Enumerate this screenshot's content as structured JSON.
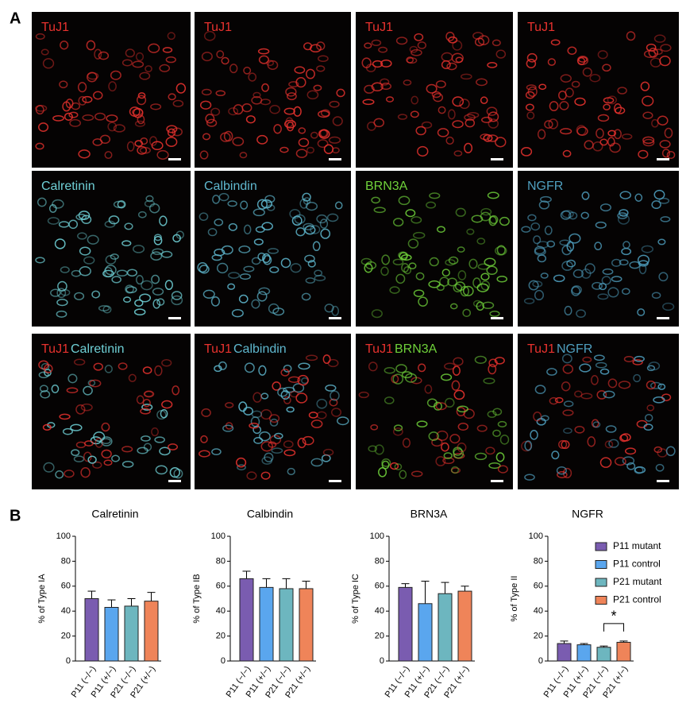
{
  "panel_a": {
    "label": "A",
    "rows": [
      [
        {
          "labels": [
            {
              "text": "TuJ1",
              "color": "#e8322e"
            }
          ]
        },
        {
          "labels": [
            {
              "text": "TuJ1",
              "color": "#e8322e"
            }
          ]
        },
        {
          "labels": [
            {
              "text": "TuJ1",
              "color": "#e8322e"
            }
          ]
        },
        {
          "labels": [
            {
              "text": "TuJ1",
              "color": "#e8322e"
            }
          ]
        }
      ],
      [
        {
          "labels": [
            {
              "text": "Calretinin",
              "color": "#6fd0d6"
            }
          ]
        },
        {
          "labels": [
            {
              "text": "Calbindin",
              "color": "#5fb8cf"
            }
          ]
        },
        {
          "labels": [
            {
              "text": "BRN3A",
              "color": "#6fd13a"
            }
          ]
        },
        {
          "labels": [
            {
              "text": "NGFR",
              "color": "#4f9fbf"
            }
          ]
        }
      ],
      [
        {
          "labels": [
            {
              "text": "TuJ1",
              "color": "#e8322e"
            },
            {
              "text": "Calretinin",
              "color": "#6fd0d6"
            }
          ]
        },
        {
          "labels": [
            {
              "text": "TuJ1",
              "color": "#e8322e"
            },
            {
              "text": "Calbindin",
              "color": "#5fb8cf"
            }
          ]
        },
        {
          "labels": [
            {
              "text": "TuJ1",
              "color": "#e8322e"
            },
            {
              "text": "BRN3A",
              "color": "#6fd13a"
            }
          ]
        },
        {
          "labels": [
            {
              "text": "TuJ1",
              "color": "#e8322e"
            },
            {
              "text": "NGFR",
              "color": "#4f9fbf"
            }
          ]
        }
      ]
    ]
  },
  "panel_b_label": "B",
  "legend": [
    {
      "name": "P11 mutant",
      "color": "#7a5cb0"
    },
    {
      "name": "P11 control",
      "color": "#5aa6ee"
    },
    {
      "name": "P21 mutant",
      "color": "#6db6bf"
    },
    {
      "name": "P21 control",
      "color": "#ef8459"
    }
  ],
  "chart_data": [
    {
      "type": "bar",
      "title": "Calretinin",
      "y_label": "% of Type IA",
      "categories": [
        "P11 (−/−)",
        "P11 (+/−)",
        "P21 (−/−)",
        "P21 (+/−)"
      ],
      "values": [
        50,
        43,
        44,
        48
      ],
      "errors": [
        6,
        6,
        6,
        7
      ],
      "colors": [
        "#7a5cb0",
        "#5aa6ee",
        "#6db6bf",
        "#ef8459"
      ],
      "ylim": [
        0,
        100
      ],
      "yticks": [
        0,
        20,
        40,
        60,
        80,
        100
      ]
    },
    {
      "type": "bar",
      "title": "Calbindin",
      "y_label": "% of Type IB",
      "categories": [
        "P11 (−/−)",
        "P11 (+/−)",
        "P21 (−/−)",
        "P21 (+/−)"
      ],
      "values": [
        66,
        59,
        58,
        58
      ],
      "errors": [
        6,
        7,
        8,
        6
      ],
      "colors": [
        "#7a5cb0",
        "#5aa6ee",
        "#6db6bf",
        "#ef8459"
      ],
      "ylim": [
        0,
        100
      ],
      "yticks": [
        0,
        20,
        40,
        60,
        80,
        100
      ]
    },
    {
      "type": "bar",
      "title": "BRN3A",
      "y_label": "% of Type IC",
      "categories": [
        "P11 (−/−)",
        "P11 (+/−)",
        "P21 (−/−)",
        "P21 (+/−)"
      ],
      "values": [
        59,
        46,
        54,
        56
      ],
      "errors": [
        3,
        18,
        9,
        4
      ],
      "colors": [
        "#7a5cb0",
        "#5aa6ee",
        "#6db6bf",
        "#ef8459"
      ],
      "ylim": [
        0,
        100
      ],
      "yticks": [
        0,
        20,
        40,
        60,
        80,
        100
      ]
    },
    {
      "type": "bar",
      "title": "NGFR",
      "y_label": "% of Type II",
      "categories": [
        "P11 (−/−)",
        "P11 (+/−)",
        "P21 (−/−)",
        "P21 (+/−)"
      ],
      "values": [
        14,
        13,
        11,
        15
      ],
      "errors": [
        2,
        1,
        1,
        1
      ],
      "colors": [
        "#7a5cb0",
        "#5aa6ee",
        "#6db6bf",
        "#ef8459"
      ],
      "ylim": [
        0,
        100
      ],
      "yticks": [
        0,
        20,
        40,
        60,
        80,
        100
      ],
      "significance": "*"
    }
  ]
}
